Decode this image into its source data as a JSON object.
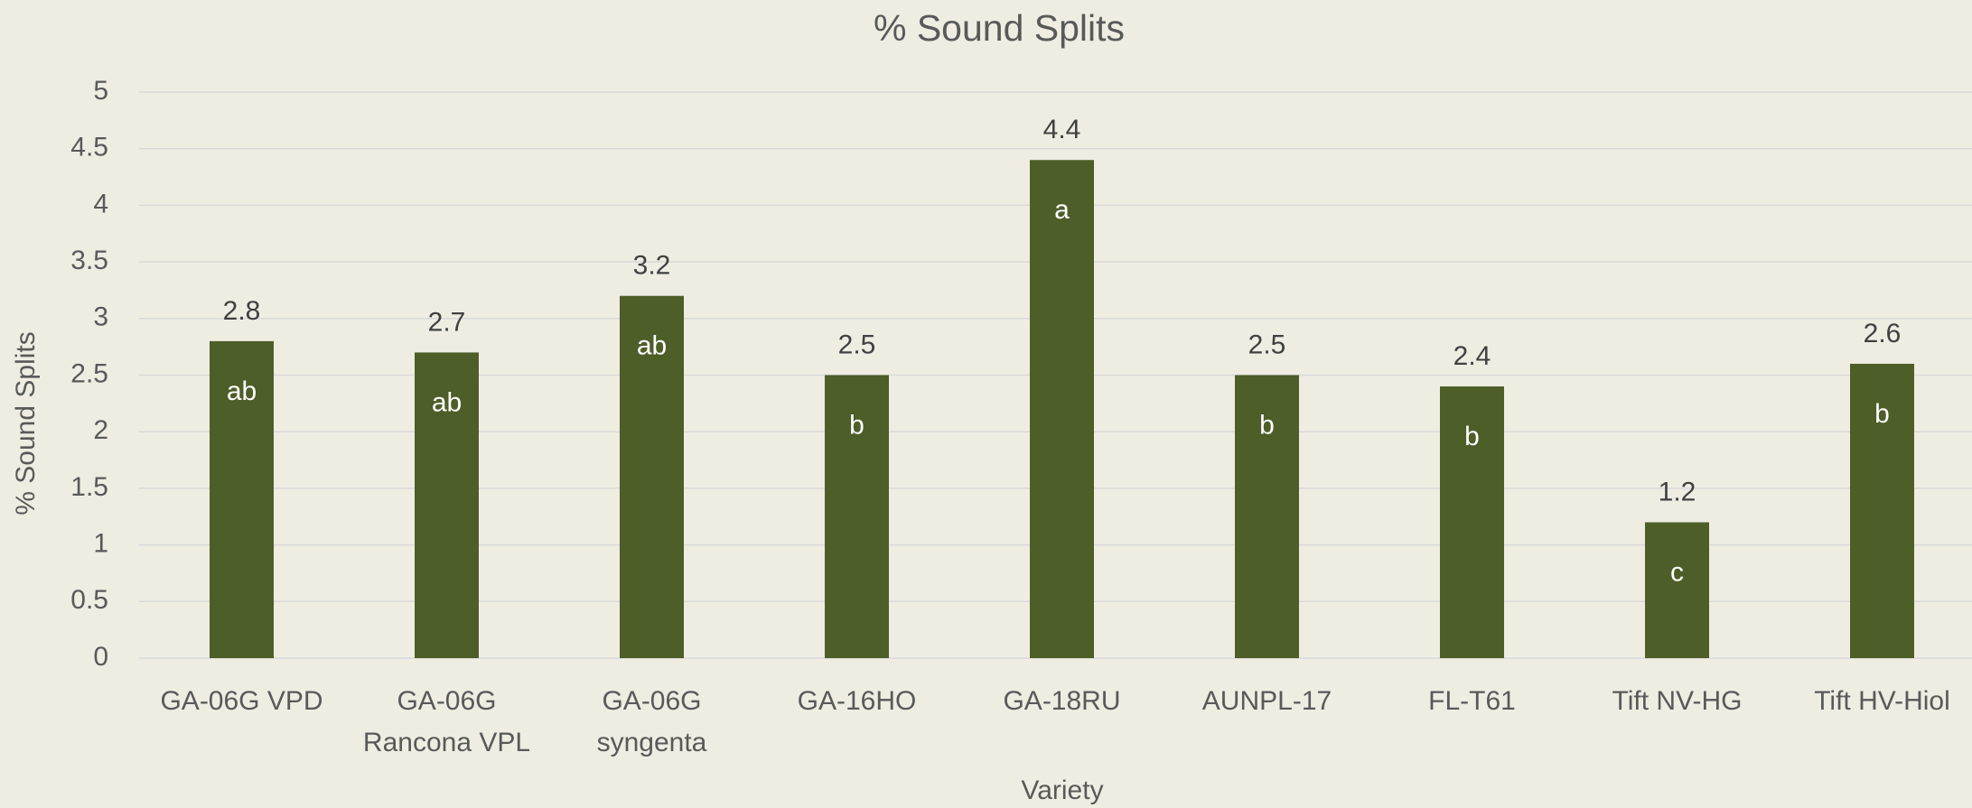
{
  "chart_data": {
    "type": "bar",
    "title": "% Sound Splits",
    "x_label": "Variety",
    "y_label": "% Sound Splits",
    "categories": [
      "GA-06G VPD",
      "GA-06G\nRancona VPL",
      "GA-06G\nsyngenta",
      "GA-16HO",
      "GA-18RU",
      "AUNPL-17",
      "FL-T61",
      "Tift NV-HG",
      "Tift HV-Hiol"
    ],
    "values": [
      2.8,
      2.7,
      3.2,
      2.5,
      4.4,
      2.5,
      2.4,
      1.2,
      2.6
    ],
    "annotations": [
      "ab",
      "ab",
      "ab",
      "b",
      "a",
      "b",
      "b",
      "c",
      "b"
    ],
    "color": "#4d5e28",
    "ylim": [
      0,
      5
    ],
    "yticks": [
      0,
      0.5,
      1,
      1.5,
      2,
      2.5,
      3,
      3.5,
      4,
      4.5,
      5
    ],
    "grid": true
  }
}
